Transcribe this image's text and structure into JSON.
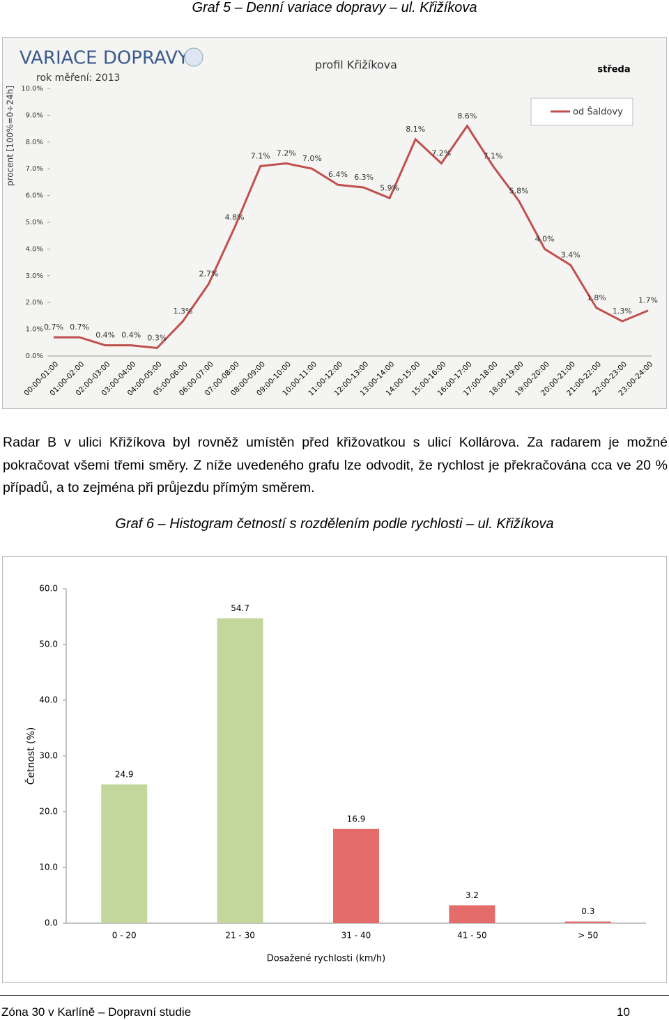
{
  "caption_1": "Graf 5 – Denní variace dopravy – ul. Křižíkova",
  "paragraph": "Radar B v ulici Křižíkova byl rovněž umístěn před křižovatkou s ulicí Kollárova. Za radarem je možné pokračovat všemi třemi směry. Z níže uvedeného grafu lze odvodit, že rychlost je překračována cca ve 20 % případů, a to zejména při průjezdu přímým směrem.",
  "caption_2": "Graf 6 – Histogram četností s rozdělením podle rychlosti – ul. Křižíkova",
  "footer": {
    "left": "Zóna 30 v Karlíně – Dopravní studie",
    "page": "10"
  },
  "chart_data": [
    {
      "type": "line",
      "title": "VARIACE DOPRAVY",
      "subtitle": "rok měření: 2013",
      "profile": "profil Křižíkova",
      "day": "středa",
      "y_label": "procent [100%=0÷24h]",
      "categories": [
        "00:00-01:00",
        "01:00-02:00",
        "02:00-03:00",
        "03:00-04:00",
        "04:00-05:00",
        "05:00-06:00",
        "06:00-07:00",
        "07:00-08:00",
        "08:00-09:00",
        "09:00-10:00",
        "10:00-11:00",
        "11:00-12:00",
        "12:00-13:00",
        "13:00-14:00",
        "14:00-15:00",
        "15:00-16:00",
        "16:00-17:00",
        "17:00-18:00",
        "18:00-19:00",
        "19:00-20:00",
        "20:00-21:00",
        "21:00-22:00",
        "22:00-23:00",
        "23:00-24:00"
      ],
      "series": [
        {
          "name": "od Šaldovy",
          "color": "#c0504d",
          "values": [
            0.7,
            0.7,
            0.4,
            0.4,
            0.3,
            1.3,
            2.7,
            4.8,
            7.1,
            7.2,
            7.0,
            6.4,
            6.3,
            5.9,
            8.1,
            7.2,
            8.6,
            7.1,
            5.8,
            4.0,
            3.4,
            1.8,
            1.3,
            1.7
          ],
          "value_labels": [
            "0.7%",
            "0.7%",
            "0.4%",
            "0.4%",
            "0.3%",
            "1.3%",
            "2.7%",
            "4.8%",
            "7.1%",
            "7.2%",
            "7.0%",
            "6.4%",
            "6.3%",
            "5.9%",
            "8.1%",
            "7.2%",
            "8.6%",
            "7.1%",
            "5.8%",
            "4.0%",
            "3.4%",
            "1.8%",
            "1.3%",
            "1.7%"
          ]
        }
      ],
      "ylim": [
        0,
        10
      ],
      "yticks": [
        {
          "value": 0,
          "label": "0.0%"
        },
        {
          "value": 1,
          "label": "1.0%"
        },
        {
          "value": 2,
          "label": "2.0%"
        },
        {
          "value": 3,
          "label": "3.0%"
        },
        {
          "value": 4,
          "label": "4.0%"
        },
        {
          "value": 5,
          "label": "5.0%"
        },
        {
          "value": 6,
          "label": "6.0%"
        },
        {
          "value": 7,
          "label": "7.0%"
        },
        {
          "value": 8,
          "label": "8.0%"
        },
        {
          "value": 9,
          "label": "9.0%"
        },
        {
          "value": 10,
          "label": "10.0%"
        }
      ],
      "grid": false,
      "legend": "upper right"
    },
    {
      "type": "bar",
      "x_label": "Dosažené rychlosti (km/h)",
      "y_label": "Četnost (%)",
      "categories": [
        "0 - 20",
        "21 - 30",
        "31 - 40",
        "41 - 50",
        "> 50"
      ],
      "values": [
        24.9,
        54.7,
        16.9,
        3.2,
        0.3
      ],
      "colors": [
        "#c3d69b",
        "#c3d69b",
        "#e46c6a",
        "#e46c6a",
        "#e46c6a"
      ],
      "ylim": [
        0,
        60
      ],
      "yticks": [
        {
          "value": 0,
          "label": "0.0"
        },
        {
          "value": 10,
          "label": "10.0"
        },
        {
          "value": 20,
          "label": "20.0"
        },
        {
          "value": 30,
          "label": "30.0"
        },
        {
          "value": 40,
          "label": "40.0"
        },
        {
          "value": 50,
          "label": "50.0"
        },
        {
          "value": 60,
          "label": "60.0"
        }
      ],
      "grid": false
    }
  ]
}
